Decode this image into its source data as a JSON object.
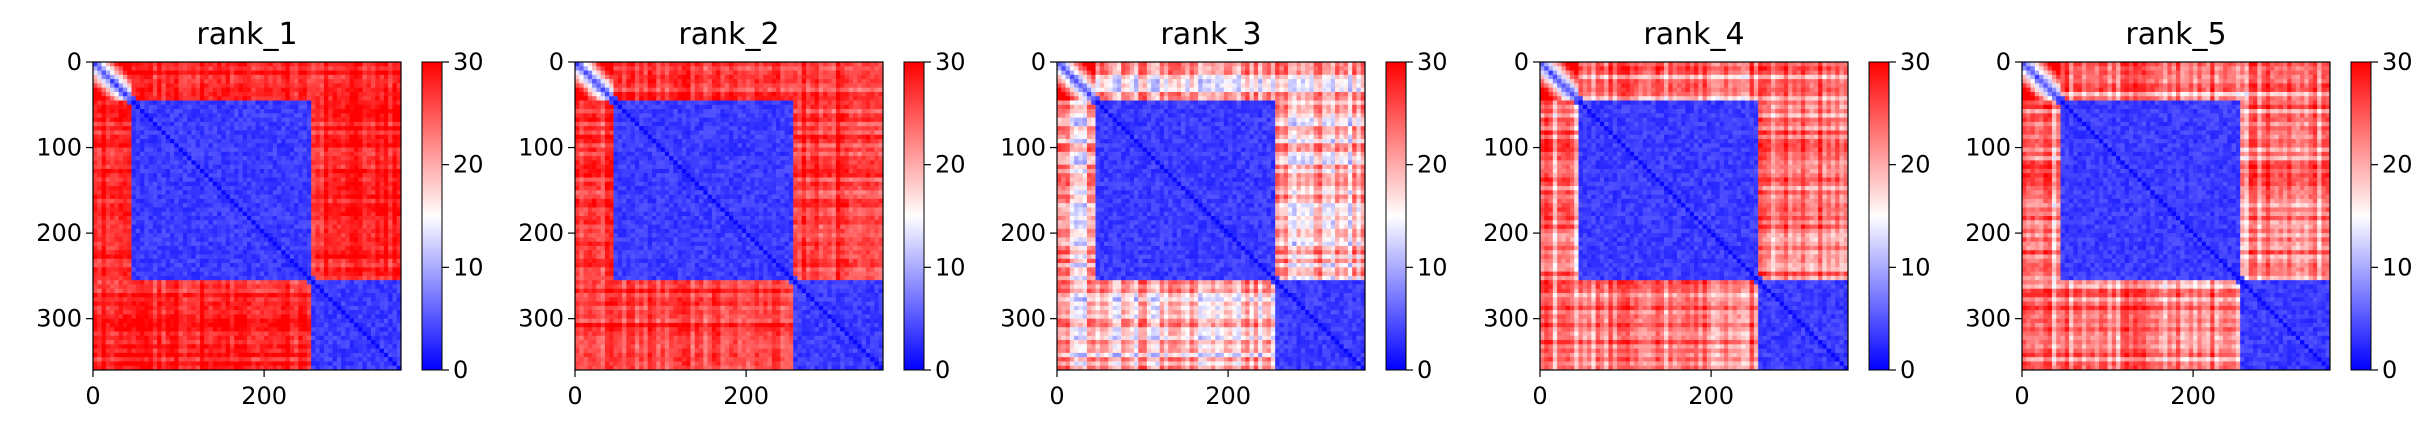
{
  "chart_data": [
    {
      "type": "heatmap",
      "title": "rank_1",
      "xlabel": "",
      "ylabel": "",
      "xlim": [
        0,
        360
      ],
      "ylim": [
        360,
        0
      ],
      "x_ticks": [
        "0",
        "200"
      ],
      "y_ticks": [
        "0",
        "100",
        "200",
        "300"
      ],
      "colorbar": {
        "range": [
          0,
          30
        ],
        "ticks": [
          "0",
          "10",
          "20",
          "30"
        ],
        "colormap": "bwr"
      },
      "structure": {
        "size": 360,
        "domain_a": [
          45,
          255
        ],
        "domain_b": [
          255,
          360
        ],
        "terminal_region": [
          0,
          45
        ],
        "inter_domain_value": 28,
        "intra_domain_value": 2,
        "noise": 4
      }
    },
    {
      "type": "heatmap",
      "title": "rank_2",
      "xlabel": "",
      "ylabel": "",
      "xlim": [
        0,
        360
      ],
      "ylim": [
        360,
        0
      ],
      "x_ticks": [
        "0",
        "200"
      ],
      "y_ticks": [
        "0",
        "100",
        "200",
        "300"
      ],
      "colorbar": {
        "range": [
          0,
          30
        ],
        "ticks": [
          "0",
          "10",
          "20",
          "30"
        ],
        "colormap": "bwr"
      },
      "structure": {
        "size": 360,
        "domain_a": [
          45,
          255
        ],
        "domain_b": [
          255,
          360
        ],
        "terminal_region": [
          0,
          45
        ],
        "inter_domain_value": 27,
        "intra_domain_value": 2,
        "noise": 5
      }
    },
    {
      "type": "heatmap",
      "title": "rank_3",
      "xlabel": "",
      "ylabel": "",
      "xlim": [
        0,
        360
      ],
      "ylim": [
        360,
        0
      ],
      "x_ticks": [
        "0",
        "200"
      ],
      "y_ticks": [
        "0",
        "100",
        "200",
        "300"
      ],
      "colorbar": {
        "range": [
          0,
          30
        ],
        "ticks": [
          "0",
          "10",
          "20",
          "30"
        ],
        "colormap": "bwr"
      },
      "structure": {
        "size": 360,
        "domain_a": [
          45,
          255
        ],
        "domain_b": [
          255,
          360
        ],
        "terminal_region": [
          0,
          45
        ],
        "inter_domain_value": 18,
        "intra_domain_value": 2,
        "noise": 9
      }
    },
    {
      "type": "heatmap",
      "title": "rank_4",
      "xlabel": "",
      "ylabel": "",
      "xlim": [
        0,
        360
      ],
      "ylim": [
        360,
        0
      ],
      "x_ticks": [
        "0",
        "200"
      ],
      "y_ticks": [
        "0",
        "100",
        "200",
        "300"
      ],
      "colorbar": {
        "range": [
          0,
          30
        ],
        "ticks": [
          "0",
          "10",
          "20",
          "30"
        ],
        "colormap": "bwr"
      },
      "structure": {
        "size": 360,
        "domain_a": [
          45,
          255
        ],
        "domain_b": [
          255,
          360
        ],
        "terminal_region": [
          0,
          45
        ],
        "inter_domain_value": 22,
        "intra_domain_value": 2,
        "noise": 8
      }
    },
    {
      "type": "heatmap",
      "title": "rank_5",
      "xlabel": "",
      "ylabel": "",
      "xlim": [
        0,
        360
      ],
      "ylim": [
        360,
        0
      ],
      "x_ticks": [
        "0",
        "200"
      ],
      "y_ticks": [
        "0",
        "100",
        "200",
        "300"
      ],
      "colorbar": {
        "range": [
          0,
          30
        ],
        "ticks": [
          "0",
          "10",
          "20",
          "30"
        ],
        "colormap": "bwr"
      },
      "structure": {
        "size": 360,
        "domain_a": [
          45,
          255
        ],
        "domain_b": [
          255,
          360
        ],
        "terminal_region": [
          0,
          45
        ],
        "inter_domain_value": 22,
        "intra_domain_value": 2,
        "noise": 8
      }
    }
  ]
}
